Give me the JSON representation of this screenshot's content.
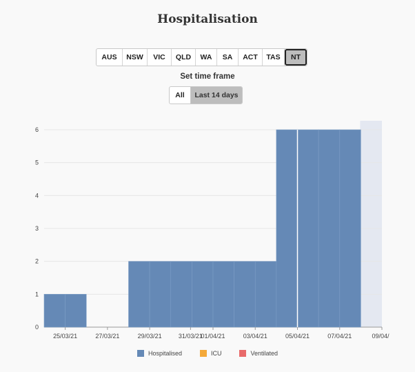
{
  "title": "Hospitalisation",
  "state_tabs": [
    {
      "label": "AUS",
      "active": false
    },
    {
      "label": "NSW",
      "active": false
    },
    {
      "label": "VIC",
      "active": false
    },
    {
      "label": "QLD",
      "active": false
    },
    {
      "label": "WA",
      "active": false
    },
    {
      "label": "SA",
      "active": false
    },
    {
      "label": "ACT",
      "active": false
    },
    {
      "label": "TAS",
      "active": false
    },
    {
      "label": "NT",
      "active": true
    }
  ],
  "timeframe": {
    "label": "Set time frame",
    "options": [
      {
        "label": "All",
        "active": false
      },
      {
        "label": "Last 14 days",
        "active": true
      }
    ]
  },
  "chart_data": {
    "type": "bar",
    "categories": [
      "24/03/21",
      "25/03/21",
      "26/03/21",
      "27/03/21",
      "28/03/21",
      "29/03/21",
      "30/03/21",
      "31/03/21",
      "01/04/21",
      "02/04/21",
      "03/04/21",
      "04/04/21",
      "05/04/21",
      "06/04/21",
      "07/04/21",
      "08/04/21"
    ],
    "series": [
      {
        "name": "Hospitalised",
        "color": "#6589b6",
        "values": [
          1,
          1,
          0,
          0,
          2,
          2,
          2,
          2,
          2,
          2,
          2,
          6,
          6,
          6,
          6,
          null
        ]
      },
      {
        "name": "ICU",
        "color": "#f4a93a",
        "values": [
          0,
          0,
          0,
          0,
          0,
          0,
          0,
          0,
          0,
          0,
          0,
          0,
          0,
          0,
          0,
          null
        ]
      },
      {
        "name": "Ventilated",
        "color": "#e86a6a",
        "values": [
          0,
          0,
          0,
          0,
          0,
          0,
          0,
          0,
          0,
          0,
          0,
          0,
          0,
          0,
          0,
          null
        ]
      }
    ],
    "x_tick_labels": [
      "25/03/21",
      "27/03/21",
      "29/03/21",
      "31/03/21",
      "01/04/21",
      "03/04/21",
      "05/04/21",
      "07/04/21",
      "09/04/"
    ],
    "y_ticks": [
      0,
      1,
      2,
      3,
      4,
      5,
      6
    ],
    "ylim": [
      0,
      6
    ],
    "grid": true,
    "legend_position": "bottom",
    "shaded_region_color": "#e4e8f1"
  }
}
